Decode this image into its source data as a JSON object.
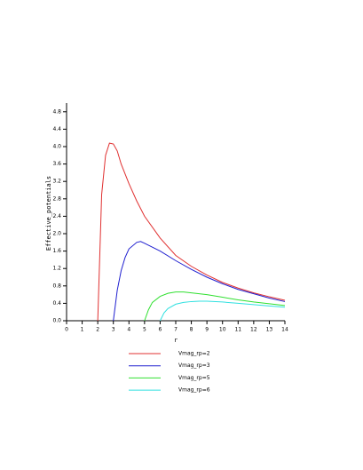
{
  "chart_data": {
    "type": "line",
    "xlabel": "r",
    "ylabel": "Effective_potentials",
    "xlim": [
      0,
      14
    ],
    "ylim": [
      0,
      5
    ],
    "xticks": [
      0,
      1,
      2,
      3,
      4,
      5,
      6,
      7,
      8,
      9,
      10,
      11,
      12,
      13,
      14
    ],
    "yticks": [
      {
        "value": 0,
        "label": "0.0"
      },
      0.4,
      0.8,
      1.2,
      1.6,
      {
        "value": 2,
        "label": "2.0"
      },
      2.4,
      2.8,
      3.2,
      3.6,
      {
        "value": 4,
        "label": "4.0"
      },
      4.4,
      4.8
    ],
    "series": [
      {
        "name": "Vmag_rp=2",
        "color": "#e03030",
        "x": [
          2,
          2.25,
          2.5,
          2.75,
          3,
          3.25,
          3.5,
          4,
          4.5,
          5,
          6,
          7,
          8,
          9,
          10,
          11,
          12,
          13,
          14
        ],
        "values": [
          0,
          2.9,
          3.8,
          4.08,
          4.06,
          3.9,
          3.6,
          3.15,
          2.75,
          2.4,
          1.9,
          1.5,
          1.25,
          1.05,
          0.88,
          0.75,
          0.64,
          0.55,
          0.47
        ]
      },
      {
        "name": "Vmag_rp=3",
        "color": "#2020d0",
        "x": [
          3,
          3.25,
          3.5,
          3.75,
          4,
          4.5,
          4.75,
          5,
          6,
          7,
          8,
          9,
          10,
          11,
          12,
          13,
          14
        ],
        "values": [
          0,
          0.7,
          1.15,
          1.45,
          1.65,
          1.8,
          1.82,
          1.78,
          1.6,
          1.38,
          1.18,
          1.0,
          0.85,
          0.72,
          0.62,
          0.52,
          0.44
        ]
      },
      {
        "name": "Vmag_rp=5",
        "color": "#30e030",
        "x": [
          5,
          5.25,
          5.5,
          6,
          6.5,
          7,
          7.5,
          8,
          9,
          10,
          11,
          12,
          13,
          14
        ],
        "values": [
          0,
          0.25,
          0.42,
          0.56,
          0.63,
          0.66,
          0.66,
          0.64,
          0.6,
          0.54,
          0.48,
          0.43,
          0.39,
          0.35
        ]
      },
      {
        "name": "Vmag_rp=6",
        "color": "#30e0e0",
        "x": [
          6,
          6.25,
          6.5,
          7,
          7.5,
          8,
          8.5,
          9,
          10,
          11,
          12,
          13,
          14
        ],
        "values": [
          0,
          0.18,
          0.28,
          0.38,
          0.42,
          0.44,
          0.45,
          0.45,
          0.43,
          0.4,
          0.37,
          0.34,
          0.31
        ]
      }
    ]
  }
}
